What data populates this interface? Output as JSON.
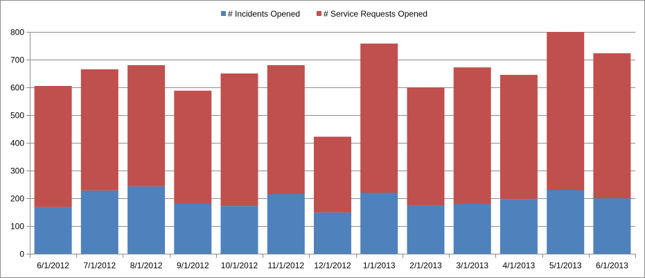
{
  "chart_data": {
    "type": "bar",
    "stacked": true,
    "title": "",
    "xlabel": "",
    "ylabel": "",
    "ylim": [
      0,
      800
    ],
    "yticks": [
      0,
      100,
      200,
      300,
      400,
      500,
      600,
      700,
      800
    ],
    "grid": true,
    "legend_position": "top",
    "categories": [
      "6/1/2012",
      "7/1/2012",
      "8/1/2012",
      "9/1/2012",
      "10/1/2012",
      "11/1/2012",
      "12/1/2012",
      "1/1/2013",
      "2/1/2013",
      "3/1/2013",
      "4/1/2013",
      "5/1/2013",
      "6/1/2013"
    ],
    "series": [
      {
        "name": "# Incidents Opened",
        "color": "#4f81bd",
        "values": [
          168,
          228,
          243,
          180,
          172,
          215,
          149,
          220,
          174,
          180,
          197,
          230,
          200
        ]
      },
      {
        "name": "# Service Requests Opened",
        "color": "#c0504d",
        "values": [
          437,
          437,
          437,
          408,
          478,
          465,
          273,
          538,
          426,
          492,
          448,
          570,
          523
        ]
      }
    ]
  }
}
